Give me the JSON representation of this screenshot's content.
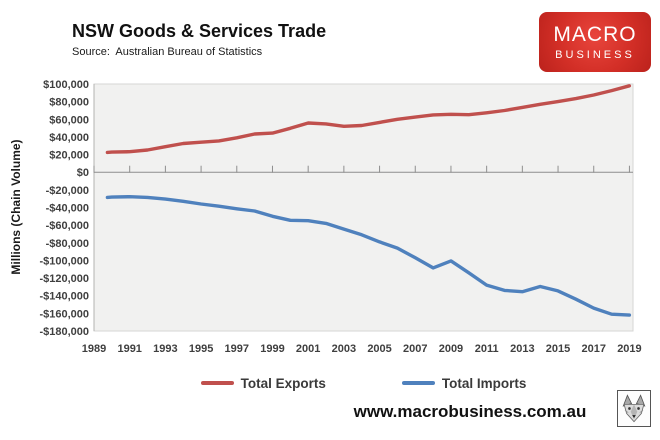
{
  "brand_logo": {
    "line1": "MACRO",
    "line2": "BUSINESS",
    "background_color": "#d32f27"
  },
  "footer": {
    "url": "www.macrobusiness.com.au",
    "emblem": "wolf-sketch-logo"
  },
  "chart_data": {
    "type": "line",
    "title": "NSW Goods & Services Trade",
    "source": "Source:  Australian Bureau of Statistics",
    "ylabel": "Millions (Chain Volume)",
    "xlabel": "",
    "grid": false,
    "plot_background": "#f1f1f0",
    "legend_position": "bottom",
    "xlim": [
      1989,
      2019.2
    ],
    "ylim": [
      -180000,
      100000
    ],
    "x_ticks": [
      1989,
      1991,
      1993,
      1995,
      1997,
      1999,
      2001,
      2003,
      2005,
      2007,
      2009,
      2011,
      2013,
      2015,
      2017,
      2019
    ],
    "y_ticks": [
      100000,
      80000,
      60000,
      40000,
      20000,
      0,
      -20000,
      -40000,
      -60000,
      -80000,
      -100000,
      -120000,
      -140000,
      -160000,
      -180000
    ],
    "x": [
      1989.75,
      1990,
      1991,
      1992,
      1993,
      1994,
      1995,
      1996,
      1997,
      1998,
      1999,
      2000,
      2001,
      2002,
      2003,
      2004,
      2005,
      2006,
      2007,
      2008,
      2009,
      2010,
      2011,
      2012,
      2013,
      2014,
      2015,
      2016,
      2017,
      2018,
      2019
    ],
    "series": [
      {
        "name": "Total Exports",
        "color": "#c0504d",
        "values": [
          22500,
          22800,
          23300,
          25200,
          28900,
          32500,
          34000,
          35500,
          39000,
          43300,
          44300,
          49800,
          55800,
          54800,
          52000,
          53000,
          56500,
          60000,
          62500,
          65000,
          65600,
          65200,
          67300,
          70000,
          73500,
          77000,
          80000,
          83500,
          87500,
          92500,
          98000
        ]
      },
      {
        "name": "Total Imports",
        "color": "#4f81bd",
        "values": [
          -28500,
          -28200,
          -27800,
          -28600,
          -30500,
          -33000,
          -36000,
          -38500,
          -41500,
          -44000,
          -50000,
          -54500,
          -55000,
          -58000,
          -64500,
          -71000,
          -79000,
          -86000,
          -97000,
          -108500,
          -100500,
          -114000,
          -128000,
          -134000,
          -135500,
          -129500,
          -134500,
          -144000,
          -154000,
          -161000,
          -162000
        ]
      }
    ]
  }
}
